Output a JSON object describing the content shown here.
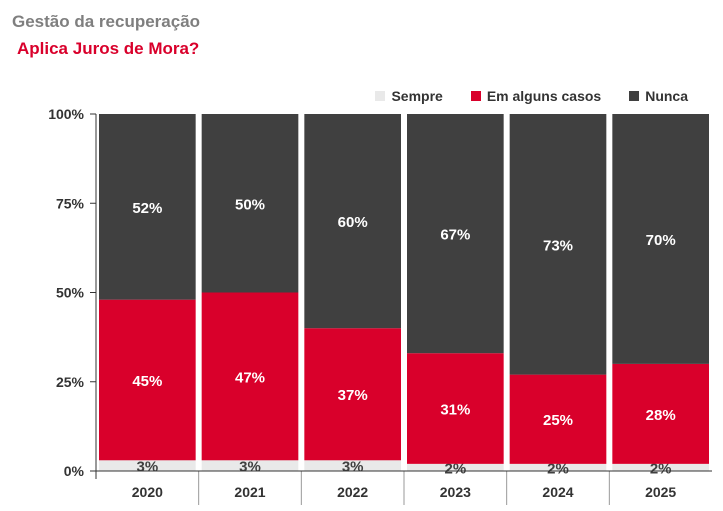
{
  "title": "Gestão da recuperação",
  "subtitle": "Aplica Juros de Mora?",
  "chart_data": {
    "type": "bar",
    "stacked": true,
    "categories": [
      "2020",
      "2021",
      "2022",
      "2023",
      "2024",
      "2025"
    ],
    "series": [
      {
        "name": "Sempre",
        "color": "#e9e9e9",
        "values": [
          3,
          3,
          3,
          2,
          2,
          2
        ],
        "labels": [
          "3%",
          "3%",
          "3%",
          "2%",
          "2%",
          "2%"
        ],
        "label_color": "#404040"
      },
      {
        "name": "Em alguns casos",
        "color": "#d9002b",
        "values": [
          45,
          47,
          37,
          31,
          25,
          28
        ],
        "labels": [
          "45%",
          "47%",
          "37%",
          "31%",
          "25%",
          "28%"
        ],
        "label_color": "#ffffff"
      },
      {
        "name": "Nunca",
        "color": "#404040",
        "values": [
          52,
          50,
          60,
          67,
          73,
          70
        ],
        "labels": [
          "52%",
          "50%",
          "60%",
          "67%",
          "73%",
          "70%"
        ],
        "label_color": "#ffffff"
      }
    ],
    "ylim": [
      0,
      100
    ],
    "yticks": [
      0,
      25,
      50,
      75,
      100
    ],
    "ytick_labels": [
      "0%",
      "25%",
      "50%",
      "75%",
      "100%"
    ],
    "legend_position": "top-right",
    "grid": false
  }
}
